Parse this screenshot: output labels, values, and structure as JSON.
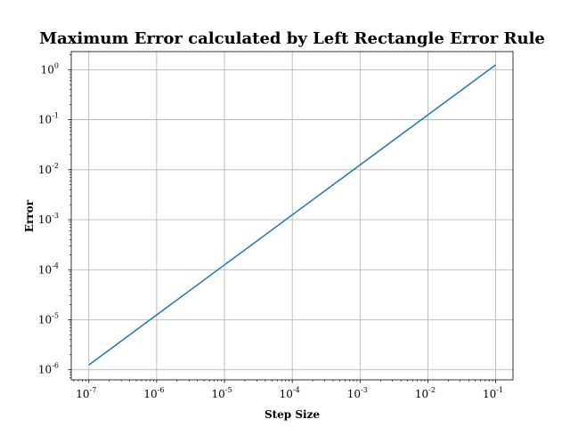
{
  "chart_data": {
    "type": "line",
    "title": "Maximum Error calculated by Left Rectangle Error Rule",
    "xlabel": "Step Size",
    "ylabel": "Error",
    "xscale": "log",
    "yscale": "log",
    "xlim": [
      5.5e-08,
      0.18
    ],
    "ylim": [
      6.3e-07,
      2.3
    ],
    "grid": true,
    "x_ticks": [
      {
        "value": 1e-07,
        "base": "10",
        "exp": "-7"
      },
      {
        "value": 1e-06,
        "base": "10",
        "exp": "-6"
      },
      {
        "value": 1e-05,
        "base": "10",
        "exp": "-5"
      },
      {
        "value": 0.0001,
        "base": "10",
        "exp": "-4"
      },
      {
        "value": 0.001,
        "base": "10",
        "exp": "-3"
      },
      {
        "value": 0.01,
        "base": "10",
        "exp": "-2"
      },
      {
        "value": 0.1,
        "base": "10",
        "exp": "-1"
      }
    ],
    "y_ticks": [
      {
        "value": 1e-06,
        "base": "10",
        "exp": "-6"
      },
      {
        "value": 1e-05,
        "base": "10",
        "exp": "-5"
      },
      {
        "value": 0.0001,
        "base": "10",
        "exp": "-4"
      },
      {
        "value": 0.001,
        "base": "10",
        "exp": "-3"
      },
      {
        "value": 0.01,
        "base": "10",
        "exp": "-2"
      },
      {
        "value": 0.1,
        "base": "10",
        "exp": "-1"
      },
      {
        "value": 1,
        "base": "10",
        "exp": "0"
      }
    ],
    "series": [
      {
        "color": "#1f77b4",
        "x": [
          1e-07,
          1e-06,
          1e-05,
          0.0001,
          0.001,
          0.01,
          0.1
        ],
        "y": [
          1.25e-06,
          1.25e-05,
          0.000125,
          0.00125,
          0.0125,
          0.125,
          1.25
        ]
      }
    ]
  }
}
